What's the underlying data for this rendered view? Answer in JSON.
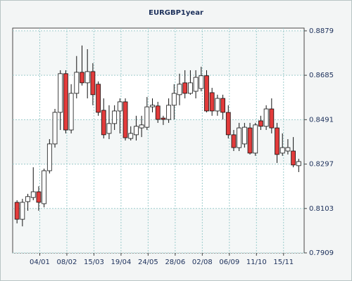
{
  "chart_data": {
    "type": "candlestick",
    "title": "EURGBP1year",
    "x": [
      0,
      1,
      2,
      3,
      4,
      5,
      6,
      7,
      8,
      9,
      10,
      11,
      12,
      13,
      14,
      15,
      16,
      17,
      18,
      19,
      20,
      21,
      22,
      23,
      24,
      25,
      26,
      27,
      28,
      29,
      30,
      31,
      32,
      33,
      34,
      35,
      36,
      37,
      38,
      39,
      40,
      41,
      42,
      43,
      44,
      45,
      46,
      47,
      48,
      49,
      50,
      51,
      52
    ],
    "open": [
      0.813,
      0.8056,
      0.8133,
      0.8151,
      0.8176,
      0.8124,
      0.8268,
      0.8385,
      0.8523,
      0.8692,
      0.8446,
      0.8606,
      0.8698,
      0.8652,
      0.8701,
      0.8646,
      0.8532,
      0.8431,
      0.8474,
      0.8529,
      0.8569,
      0.8409,
      0.8425,
      0.8455,
      0.8458,
      0.8547,
      0.8551,
      0.8498,
      0.8492,
      0.8554,
      0.86,
      0.8652,
      0.8606,
      0.8615,
      0.8627,
      0.8683,
      0.8609,
      0.8529,
      0.8584,
      0.8523,
      0.8425,
      0.8369,
      0.8385,
      0.8455,
      0.8345,
      0.8486,
      0.8462,
      0.8538,
      0.8455,
      0.8345,
      0.8354,
      0.8354,
      0.829
    ],
    "high": [
      0.8139,
      0.8145,
      0.8167,
      0.8283,
      0.82,
      0.8277,
      0.8406,
      0.8538,
      0.8707,
      0.8707,
      0.8646,
      0.8769,
      0.8815,
      0.8799,
      0.8738,
      0.8658,
      0.8584,
      0.8554,
      0.8554,
      0.8584,
      0.8584,
      0.8462,
      0.8508,
      0.8508,
      0.859,
      0.8584,
      0.8569,
      0.8508,
      0.8584,
      0.8646,
      0.8692,
      0.8707,
      0.8707,
      0.8707,
      0.8722,
      0.8707,
      0.863,
      0.86,
      0.86,
      0.8554,
      0.8446,
      0.8477,
      0.8477,
      0.8477,
      0.8477,
      0.8508,
      0.8554,
      0.8584,
      0.8477,
      0.8431,
      0.8406,
      0.8415,
      0.832
    ],
    "low": [
      0.8038,
      0.8025,
      0.8093,
      0.8139,
      0.8093,
      0.8108,
      0.8256,
      0.8369,
      0.8446,
      0.8431,
      0.8431,
      0.8584,
      0.864,
      0.8584,
      0.8554,
      0.8508,
      0.8409,
      0.8406,
      0.8446,
      0.8431,
      0.84,
      0.84,
      0.84,
      0.8415,
      0.8446,
      0.8523,
      0.8477,
      0.8468,
      0.8477,
      0.8492,
      0.8554,
      0.8584,
      0.86,
      0.8584,
      0.8615,
      0.8523,
      0.8508,
      0.8508,
      0.8492,
      0.8409,
      0.8354,
      0.8354,
      0.8369,
      0.8339,
      0.8333,
      0.8446,
      0.8446,
      0.8431,
      0.8302,
      0.8333,
      0.8339,
      0.8283,
      0.8262
    ],
    "close": [
      0.8056,
      0.813,
      0.8155,
      0.8176,
      0.813,
      0.8268,
      0.8385,
      0.8523,
      0.8692,
      0.8446,
      0.8606,
      0.8698,
      0.8652,
      0.8701,
      0.86,
      0.8523,
      0.8425,
      0.8474,
      0.8529,
      0.8569,
      0.8412,
      0.8431,
      0.8462,
      0.8468,
      0.8547,
      0.8554,
      0.8492,
      0.8492,
      0.8554,
      0.8606,
      0.8646,
      0.8606,
      0.8652,
      0.8676,
      0.8683,
      0.8529,
      0.8529,
      0.8584,
      0.8523,
      0.8425,
      0.8369,
      0.8455,
      0.8458,
      0.8345,
      0.8468,
      0.8462,
      0.8538,
      0.8455,
      0.8339,
      0.8369,
      0.8369,
      0.8293,
      0.8308
    ],
    "up_color": "#ffffff",
    "down_color": "#e23b3b",
    "xlim": [
      -0.8,
      53.0
    ],
    "xticks": [
      {
        "value": 4.2,
        "label": "04/01"
      },
      {
        "value": 9.2,
        "label": "08/02"
      },
      {
        "value": 14.2,
        "label": "15/03"
      },
      {
        "value": 19.2,
        "label": "19/04"
      },
      {
        "value": 24.2,
        "label": "24/05"
      },
      {
        "value": 29.2,
        "label": "28/06"
      },
      {
        "value": 34.2,
        "label": "02/08"
      },
      {
        "value": 39.2,
        "label": "06/09"
      },
      {
        "value": 44.2,
        "label": "11/10"
      },
      {
        "value": 49.2,
        "label": "15/11"
      }
    ],
    "ylim": [
      0.7909,
      0.8891
    ],
    "yticks": [
      0.7909,
      0.8103,
      0.8297,
      0.8491,
      0.8685,
      0.8879
    ],
    "grid": true
  }
}
